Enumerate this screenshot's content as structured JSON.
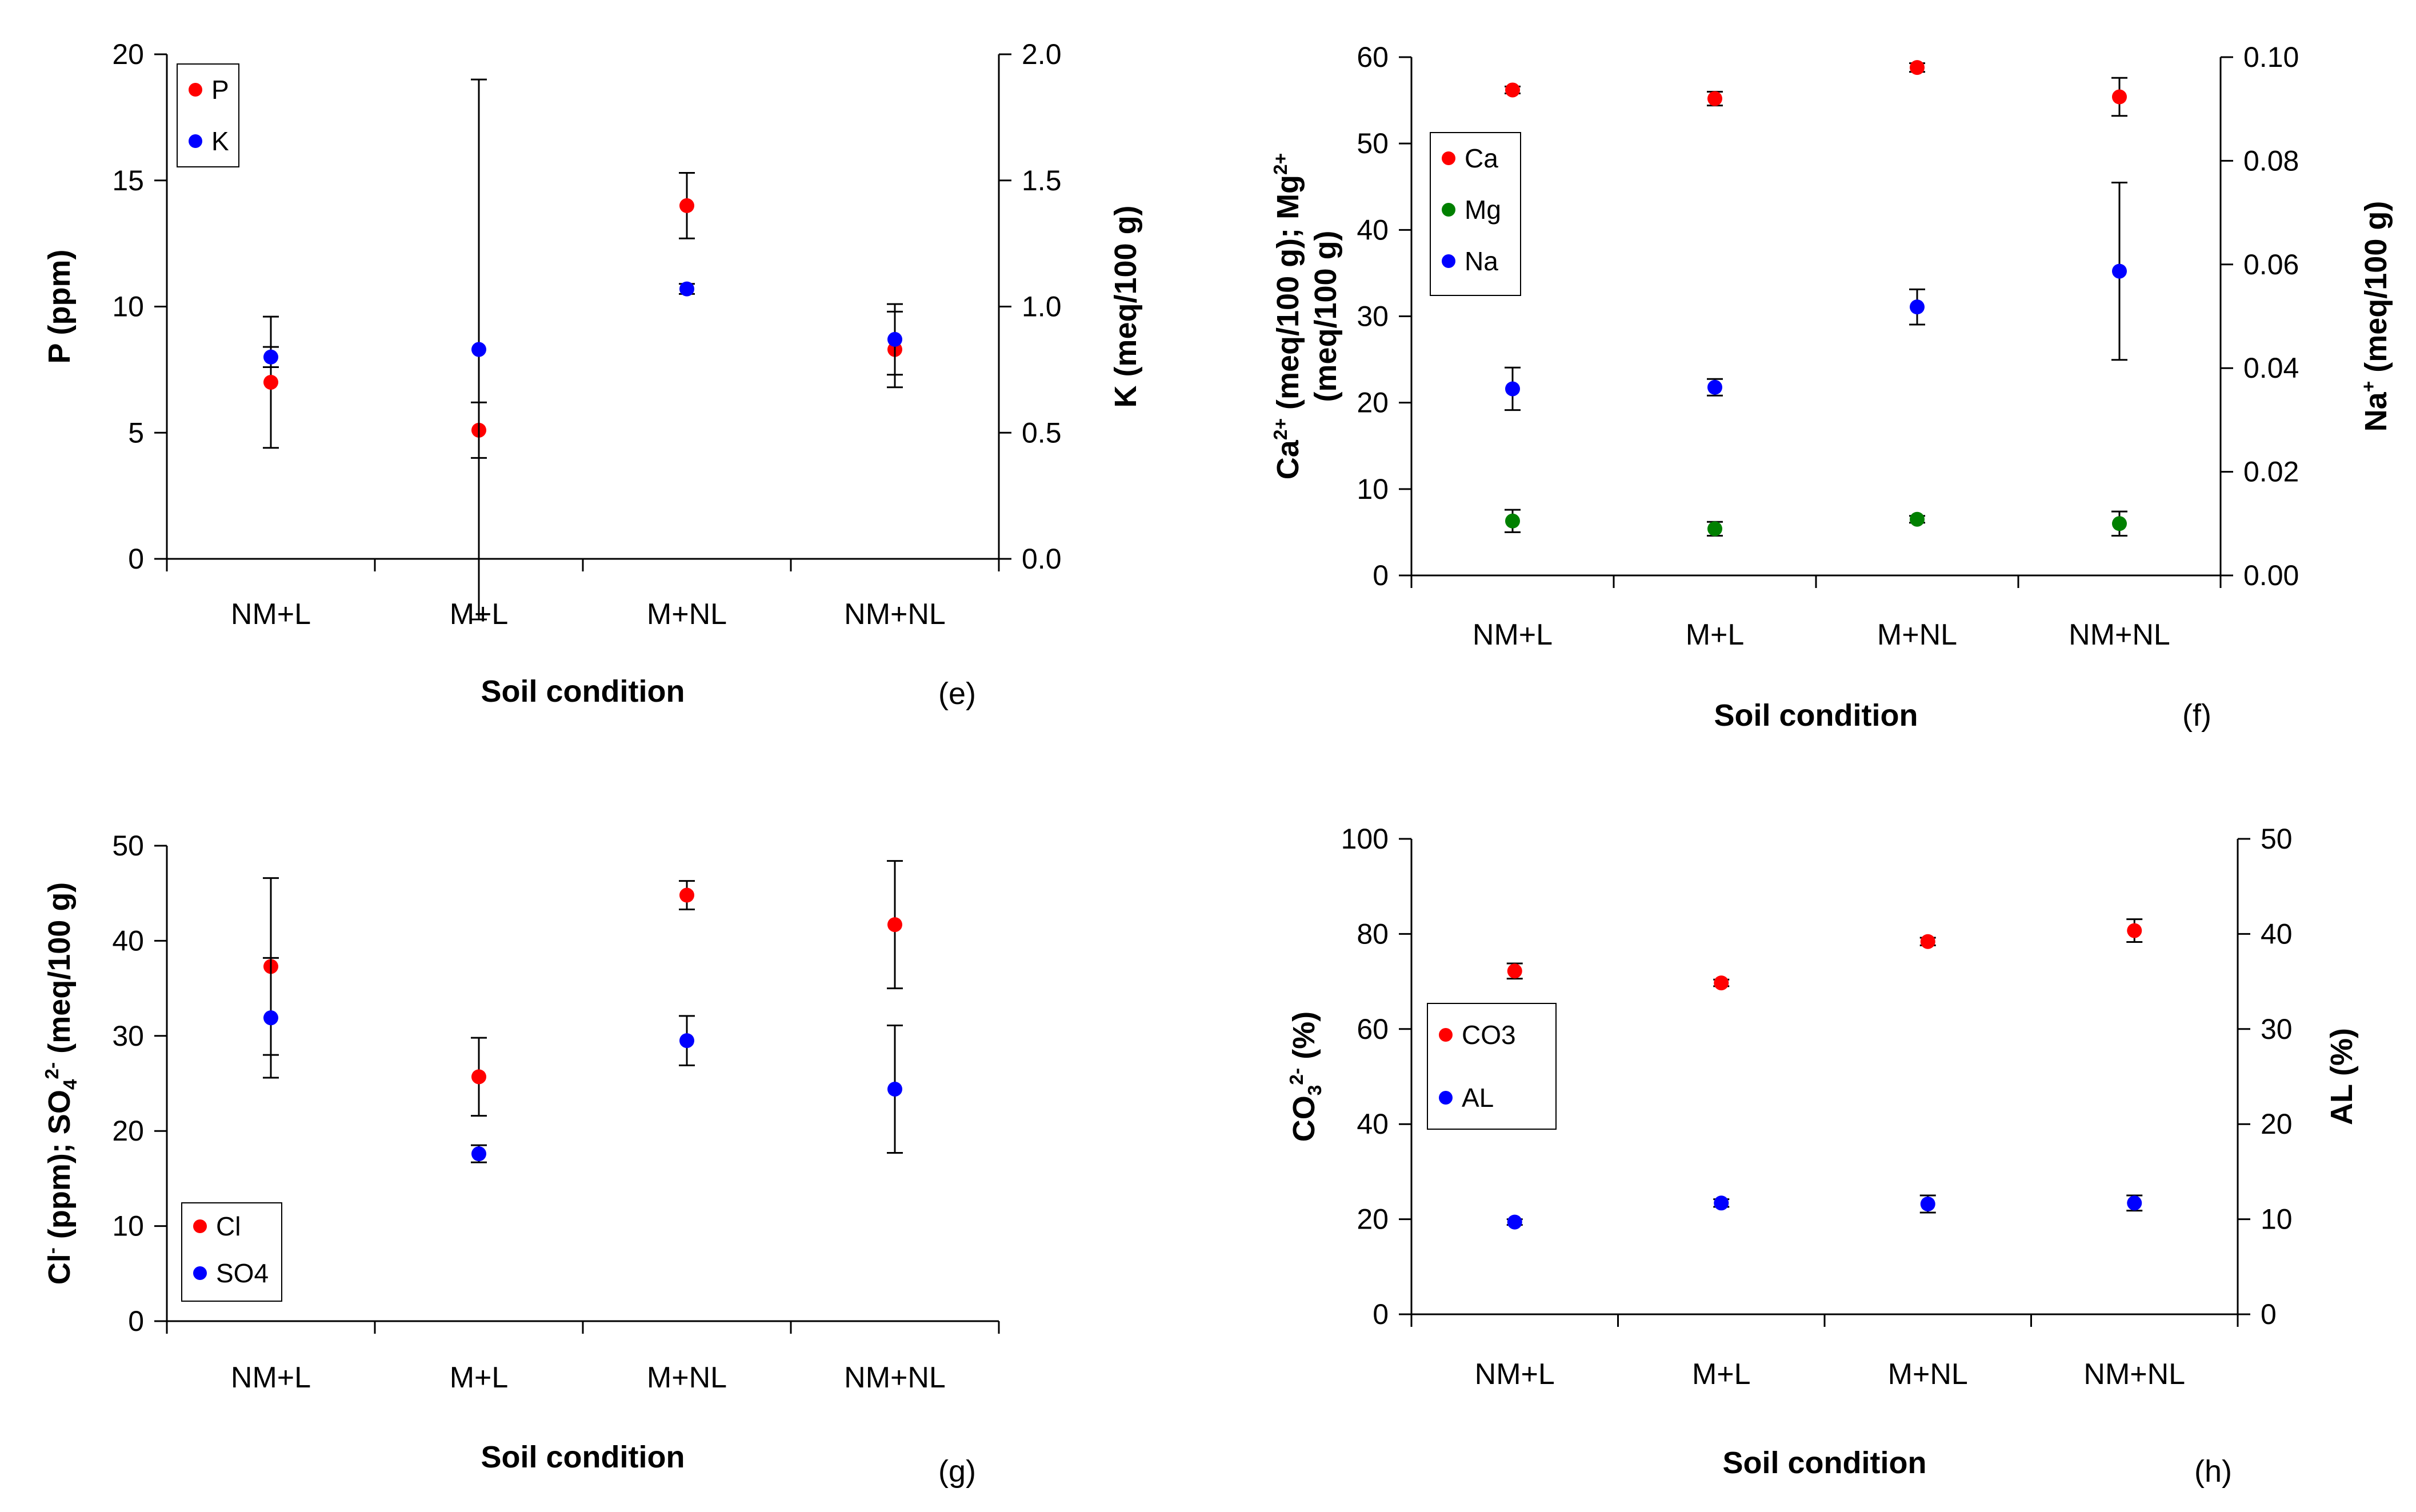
{
  "figure": {
    "colors": {
      "red": "#ff0000",
      "blue": "#0000ff",
      "green": "#008000",
      "axis": "#000000"
    }
  },
  "chart_data": [
    {
      "id": "e",
      "type": "scatter",
      "panel_label": "(e)",
      "categories": [
        "NM+L",
        "M+L",
        "M+NL",
        "NM+NL"
      ],
      "xlabel": "Soil condition",
      "ylabel_left": {
        "text": "P (ppm)"
      },
      "ylabel_right": {
        "text": "K (meq/100 g)"
      },
      "ylim_left": [
        0,
        20
      ],
      "yticks_left": [
        0,
        5,
        10,
        15,
        20
      ],
      "ylim_right": [
        0,
        2.0
      ],
      "yticks_right": [
        0.0,
        0.5,
        1.0,
        1.5,
        2.0
      ],
      "tick_decimals_left": 0,
      "tick_decimals_right": 1,
      "legend_position": "top-left",
      "series": [
        {
          "name": "P",
          "axis": "left",
          "color": "#ff0000",
          "values": [
            7.0,
            5.1,
            14.0,
            8.3
          ],
          "errors": [
            2.6,
            1.1,
            1.3,
            1.5
          ]
        },
        {
          "name": "K",
          "axis": "right",
          "color": "#0000ff",
          "values": [
            0.8,
            0.83,
            1.07,
            0.87
          ],
          "errors": [
            0.04,
            1.07,
            0.02,
            0.14
          ]
        }
      ]
    },
    {
      "id": "f",
      "type": "scatter",
      "panel_label": "(f)",
      "categories": [
        "NM+L",
        "M+L",
        "M+NL",
        "NM+NL"
      ],
      "xlabel": "Soil condition",
      "ylabel_left": {
        "text": "Ca2+ (meq/100 g); Mg2+ (meq/100 g)",
        "line1": [
          [
            "Ca",
            ""
          ],
          [
            "2+",
            "sup"
          ],
          [
            " (meq/100 g); Mg",
            ""
          ],
          [
            "2+",
            "sup"
          ]
        ],
        "line2": [
          [
            "(meq/100 g)",
            ""
          ]
        ]
      },
      "ylabel_right": {
        "text": "Na+ (meq/100 g)",
        "line1": [
          [
            "Na",
            ""
          ],
          [
            "+",
            "sup"
          ],
          [
            " (meq/100 g)",
            ""
          ]
        ]
      },
      "ylim_left": [
        0,
        60
      ],
      "yticks_left": [
        0,
        10,
        20,
        30,
        40,
        50,
        60
      ],
      "ylim_right": [
        0,
        0.1
      ],
      "yticks_right": [
        0.0,
        0.02,
        0.04,
        0.06,
        0.08,
        0.1
      ],
      "tick_decimals_left": 0,
      "tick_decimals_right": 2,
      "legend_position": "upper-left",
      "series": [
        {
          "name": "Ca",
          "axis": "left",
          "color": "#ff0000",
          "values": [
            56.2,
            55.2,
            58.8,
            55.4
          ],
          "errors": [
            0.4,
            0.8,
            0.5,
            2.2
          ]
        },
        {
          "name": "Mg",
          "axis": "left",
          "color": "#008000",
          "values": [
            6.3,
            5.4,
            6.5,
            6.0
          ],
          "errors": [
            1.3,
            0.8,
            0.4,
            1.4
          ]
        },
        {
          "name": "Na",
          "axis": "right",
          "color": "#0000ff",
          "values": [
            0.036,
            0.0363,
            0.0518,
            0.0587
          ],
          "errors": [
            0.0041,
            0.0016,
            0.0034,
            0.0171
          ]
        }
      ]
    },
    {
      "id": "g",
      "type": "scatter",
      "panel_label": "(g)",
      "categories": [
        "NM+L",
        "M+L",
        "M+NL",
        "NM+NL"
      ],
      "xlabel": "Soil condition",
      "ylabel_left": {
        "text": "Cl- (ppm); SO42- (meq/100 g)",
        "line1": [
          [
            "Cl",
            ""
          ],
          [
            "-",
            "sup"
          ],
          [
            " (ppm); SO",
            ""
          ],
          [
            "4",
            "sub"
          ],
          [
            "2-",
            "sup"
          ],
          [
            " (meq/100 g)",
            ""
          ]
        ]
      },
      "ylim_left": [
        0,
        50
      ],
      "yticks_left": [
        0,
        10,
        20,
        30,
        40,
        50
      ],
      "tick_decimals_left": 0,
      "legend_position": "bottom-left",
      "series": [
        {
          "name": "Cl",
          "axis": "left",
          "color": "#ff0000",
          "values": [
            37.3,
            25.7,
            44.8,
            41.7
          ],
          "errors": [
            9.3,
            4.1,
            1.5,
            6.7
          ]
        },
        {
          "name": "SO4",
          "axis": "left",
          "color": "#0000ff",
          "values": [
            31.9,
            17.6,
            29.5,
            24.4
          ],
          "errors": [
            6.3,
            0.9,
            2.6,
            6.7
          ]
        }
      ]
    },
    {
      "id": "h",
      "type": "scatter",
      "panel_label": "(h)",
      "categories": [
        "NM+L",
        "M+L",
        "M+NL",
        "NM+NL"
      ],
      "xlabel": "Soil condition",
      "ylabel_left": {
        "text": "CO32- (%)",
        "line1": [
          [
            "CO",
            ""
          ],
          [
            "3",
            "sub"
          ],
          [
            "2-",
            "sup"
          ],
          [
            " (%)",
            ""
          ]
        ]
      },
      "ylabel_right": {
        "text": "AL (%)"
      },
      "ylim_left": [
        0,
        100
      ],
      "yticks_left": [
        0,
        20,
        40,
        60,
        80,
        100
      ],
      "ylim_right": [
        0,
        50
      ],
      "yticks_right": [
        0,
        10,
        20,
        30,
        40,
        50
      ],
      "tick_decimals_left": 0,
      "tick_decimals_right": 0,
      "legend_position": "middle-left",
      "series": [
        {
          "name": "CO3",
          "axis": "left",
          "color": "#ff0000",
          "values": [
            72.2,
            69.7,
            78.4,
            80.7
          ],
          "errors": [
            1.6,
            0.7,
            0.8,
            2.4
          ]
        },
        {
          "name": "AL",
          "axis": "right",
          "color": "#0000ff",
          "values": [
            9.7,
            11.7,
            11.6,
            11.7
          ],
          "errors": [
            0.3,
            0.4,
            0.9,
            0.8
          ]
        }
      ]
    }
  ]
}
